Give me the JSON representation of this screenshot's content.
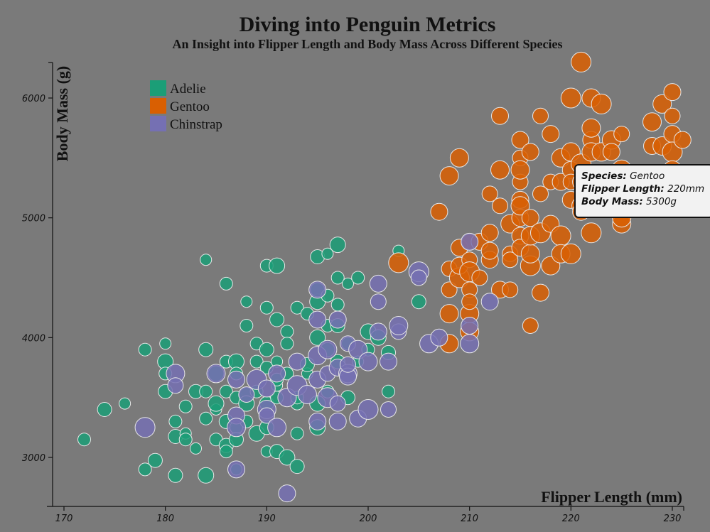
{
  "colors": {
    "background": "#7a7a7a",
    "adelie": "#1b9e77",
    "gentoo": "#d95f02",
    "chinstrap": "#7570b3",
    "point_stroke": "#e6e6e6"
  },
  "tooltip": {
    "species_label": "Species:",
    "species_value": "Gentoo",
    "flipper_label": "Flipper Length:",
    "flipper_value": "220mm",
    "mass_label": "Body Mass:",
    "mass_value": "5300g"
  },
  "chart_data": {
    "type": "scatter",
    "title": "Diving into Penguin Metrics",
    "subtitle": "An Insight into Flipper Length and Body Mass Across Different Species",
    "xlabel": "Flipper Length (mm)",
    "ylabel": "Body Mass (g)",
    "xlim": [
      169,
      231
    ],
    "ylim": [
      2600,
      6350
    ],
    "xticks": [
      170,
      180,
      190,
      200,
      210,
      220,
      230
    ],
    "yticks": [
      3000,
      4000,
      5000,
      6000
    ],
    "grid": false,
    "legend": {
      "position": "top-left",
      "entries": [
        "Adelie",
        "Gentoo",
        "Chinstrap"
      ]
    },
    "series": [
      {
        "name": "Adelie",
        "color": "#1b9e77",
        "points": [
          [
            172,
            3150
          ],
          [
            174,
            3400
          ],
          [
            176,
            3450
          ],
          [
            178,
            3900
          ],
          [
            178,
            2900
          ],
          [
            179,
            2975
          ],
          [
            180,
            3950
          ],
          [
            180,
            3800
          ],
          [
            180,
            3550
          ],
          [
            180,
            3700
          ],
          [
            181,
            3300
          ],
          [
            181,
            2850
          ],
          [
            181,
            3175
          ],
          [
            182,
            3200
          ],
          [
            182,
            3425
          ],
          [
            182,
            3150
          ],
          [
            183,
            3550
          ],
          [
            183,
            3075
          ],
          [
            184,
            3900
          ],
          [
            184,
            3550
          ],
          [
            184,
            3325
          ],
          [
            184,
            4650
          ],
          [
            184,
            2850
          ],
          [
            185,
            3700
          ],
          [
            185,
            3400
          ],
          [
            185,
            3150
          ],
          [
            185,
            3450
          ],
          [
            186,
            3800
          ],
          [
            186,
            3550
          ],
          [
            186,
            3300
          ],
          [
            186,
            3100
          ],
          [
            186,
            3050
          ],
          [
            186,
            4450
          ],
          [
            187,
            3800
          ],
          [
            187,
            3500
          ],
          [
            187,
            3250
          ],
          [
            187,
            3150
          ],
          [
            187,
            3700
          ],
          [
            187,
            2900
          ],
          [
            188,
            3525
          ],
          [
            188,
            3300
          ],
          [
            188,
            4100
          ],
          [
            188,
            4300
          ],
          [
            188,
            3450
          ],
          [
            189,
            3950
          ],
          [
            189,
            3200
          ],
          [
            189,
            3550
          ],
          [
            189,
            3800
          ],
          [
            190,
            3900
          ],
          [
            190,
            3750
          ],
          [
            190,
            3450
          ],
          [
            190,
            3250
          ],
          [
            190,
            3050
          ],
          [
            190,
            4600
          ],
          [
            190,
            4250
          ],
          [
            191,
            3800
          ],
          [
            191,
            3600
          ],
          [
            191,
            3500
          ],
          [
            191,
            3050
          ],
          [
            191,
            4150
          ],
          [
            191,
            4600
          ],
          [
            191,
            3650
          ],
          [
            192,
            4050
          ],
          [
            192,
            3950
          ],
          [
            192,
            3700
          ],
          [
            192,
            3000
          ],
          [
            193,
            3450
          ],
          [
            193,
            3500
          ],
          [
            193,
            3200
          ],
          [
            193,
            4250
          ],
          [
            193,
            2925
          ],
          [
            194,
            3700
          ],
          [
            194,
            4200
          ],
          [
            194,
            3775
          ],
          [
            195,
            4000
          ],
          [
            195,
            3250
          ],
          [
            195,
            3450
          ],
          [
            195,
            4300
          ],
          [
            195,
            4400
          ],
          [
            195,
            4675
          ],
          [
            196,
            3900
          ],
          [
            196,
            4700
          ],
          [
            196,
            4100
          ],
          [
            196,
            4350
          ],
          [
            196,
            3550
          ],
          [
            197,
            4500
          ],
          [
            197,
            3800
          ],
          [
            197,
            4100
          ],
          [
            197,
            4275
          ],
          [
            197,
            4775
          ],
          [
            198,
            4450
          ],
          [
            198,
            3950
          ],
          [
            198,
            3500
          ],
          [
            199,
            4500
          ],
          [
            199,
            3800
          ],
          [
            200,
            4050
          ],
          [
            200,
            3900
          ],
          [
            201,
            4000
          ],
          [
            202,
            3875
          ],
          [
            202,
            3550
          ],
          [
            203,
            4725
          ],
          [
            205,
            4300
          ]
        ]
      },
      {
        "name": "Gentoo",
        "color": "#d95f02",
        "points": [
          [
            203,
            4625
          ],
          [
            207,
            5050
          ],
          [
            208,
            4575
          ],
          [
            208,
            4400
          ],
          [
            208,
            3950
          ],
          [
            208,
            4200
          ],
          [
            208,
            5350
          ],
          [
            209,
            4500
          ],
          [
            209,
            4750
          ],
          [
            209,
            5500
          ],
          [
            209,
            4600
          ],
          [
            210,
            4800
          ],
          [
            210,
            4650
          ],
          [
            210,
            4400
          ],
          [
            210,
            4200
          ],
          [
            210,
            4050
          ],
          [
            210,
            4550
          ],
          [
            210,
            4300
          ],
          [
            211,
            4800
          ],
          [
            211,
            4500
          ],
          [
            212,
            4875
          ],
          [
            212,
            4650
          ],
          [
            212,
            5200
          ],
          [
            212,
            4725
          ],
          [
            213,
            5850
          ],
          [
            213,
            4400
          ],
          [
            213,
            5400
          ],
          [
            213,
            5100
          ],
          [
            214,
            4700
          ],
          [
            214,
            4400
          ],
          [
            214,
            4950
          ],
          [
            214,
            4650
          ],
          [
            215,
            5650
          ],
          [
            215,
            5300
          ],
          [
            215,
            4850
          ],
          [
            215,
            5000
          ],
          [
            215,
            5500
          ],
          [
            215,
            5400
          ],
          [
            215,
            5150
          ],
          [
            215,
            5100
          ],
          [
            215,
            4750
          ],
          [
            216,
            4600
          ],
          [
            216,
            4700
          ],
          [
            216,
            4850
          ],
          [
            216,
            5000
          ],
          [
            216,
            5550
          ],
          [
            216,
            4100
          ],
          [
            217,
            4875
          ],
          [
            217,
            5850
          ],
          [
            217,
            5200
          ],
          [
            217,
            4375
          ],
          [
            218,
            5700
          ],
          [
            218,
            5300
          ],
          [
            218,
            4600
          ],
          [
            218,
            4950
          ],
          [
            219,
            5300
          ],
          [
            219,
            5500
          ],
          [
            219,
            4850
          ],
          [
            219,
            4700
          ],
          [
            220,
            5400
          ],
          [
            220,
            5300
          ],
          [
            220,
            6000
          ],
          [
            220,
            5550
          ],
          [
            220,
            5150
          ],
          [
            220,
            4700
          ],
          [
            221,
            5100
          ],
          [
            221,
            5300
          ],
          [
            221,
            6300
          ],
          [
            221,
            5450
          ],
          [
            221,
            5050
          ],
          [
            222,
            5650
          ],
          [
            222,
            5750
          ],
          [
            222,
            6000
          ],
          [
            222,
            4875
          ],
          [
            222,
            5550
          ],
          [
            223,
            5950
          ],
          [
            223,
            5550
          ],
          [
            224,
            5650
          ],
          [
            224,
            5550
          ],
          [
            225,
            5700
          ],
          [
            225,
            5400
          ],
          [
            225,
            4950
          ],
          [
            225,
            5000
          ],
          [
            228,
            5600
          ],
          [
            228,
            5800
          ],
          [
            229,
            5950
          ],
          [
            229,
            5600
          ],
          [
            230,
            5700
          ],
          [
            230,
            5550
          ],
          [
            230,
            5400
          ],
          [
            230,
            5850
          ],
          [
            230,
            6050
          ],
          [
            231,
            5650
          ]
        ]
      },
      {
        "name": "Chinstrap",
        "color": "#7570b3",
        "points": [
          [
            178,
            3250
          ],
          [
            181,
            3700
          ],
          [
            181,
            3600
          ],
          [
            185,
            3700
          ],
          [
            187,
            3650
          ],
          [
            187,
            3350
          ],
          [
            187,
            3250
          ],
          [
            187,
            2900
          ],
          [
            188,
            3525
          ],
          [
            189,
            3650
          ],
          [
            190,
            3400
          ],
          [
            190,
            3350
          ],
          [
            190,
            3575
          ],
          [
            191,
            3700
          ],
          [
            191,
            3250
          ],
          [
            192,
            2700
          ],
          [
            192,
            3500
          ],
          [
            193,
            3800
          ],
          [
            193,
            3600
          ],
          [
            194,
            3525
          ],
          [
            195,
            3650
          ],
          [
            195,
            3850
          ],
          [
            195,
            4400
          ],
          [
            195,
            4150
          ],
          [
            195,
            3300
          ],
          [
            196,
            3500
          ],
          [
            196,
            3900
          ],
          [
            196,
            3700
          ],
          [
            197,
            3450
          ],
          [
            197,
            3750
          ],
          [
            197,
            4150
          ],
          [
            197,
            3300
          ],
          [
            198,
            3700
          ],
          [
            198,
            3675
          ],
          [
            198,
            3775
          ],
          [
            198,
            3950
          ],
          [
            199,
            3900
          ],
          [
            199,
            3325
          ],
          [
            200,
            3800
          ],
          [
            200,
            3400
          ],
          [
            201,
            4300
          ],
          [
            201,
            4450
          ],
          [
            201,
            4050
          ],
          [
            202,
            3800
          ],
          [
            202,
            3400
          ],
          [
            203,
            4050
          ],
          [
            203,
            4100
          ],
          [
            205,
            4550
          ],
          [
            205,
            4500
          ],
          [
            206,
            3950
          ],
          [
            207,
            4000
          ],
          [
            210,
            4800
          ],
          [
            210,
            4100
          ],
          [
            210,
            3950
          ],
          [
            212,
            4300
          ]
        ]
      }
    ]
  }
}
